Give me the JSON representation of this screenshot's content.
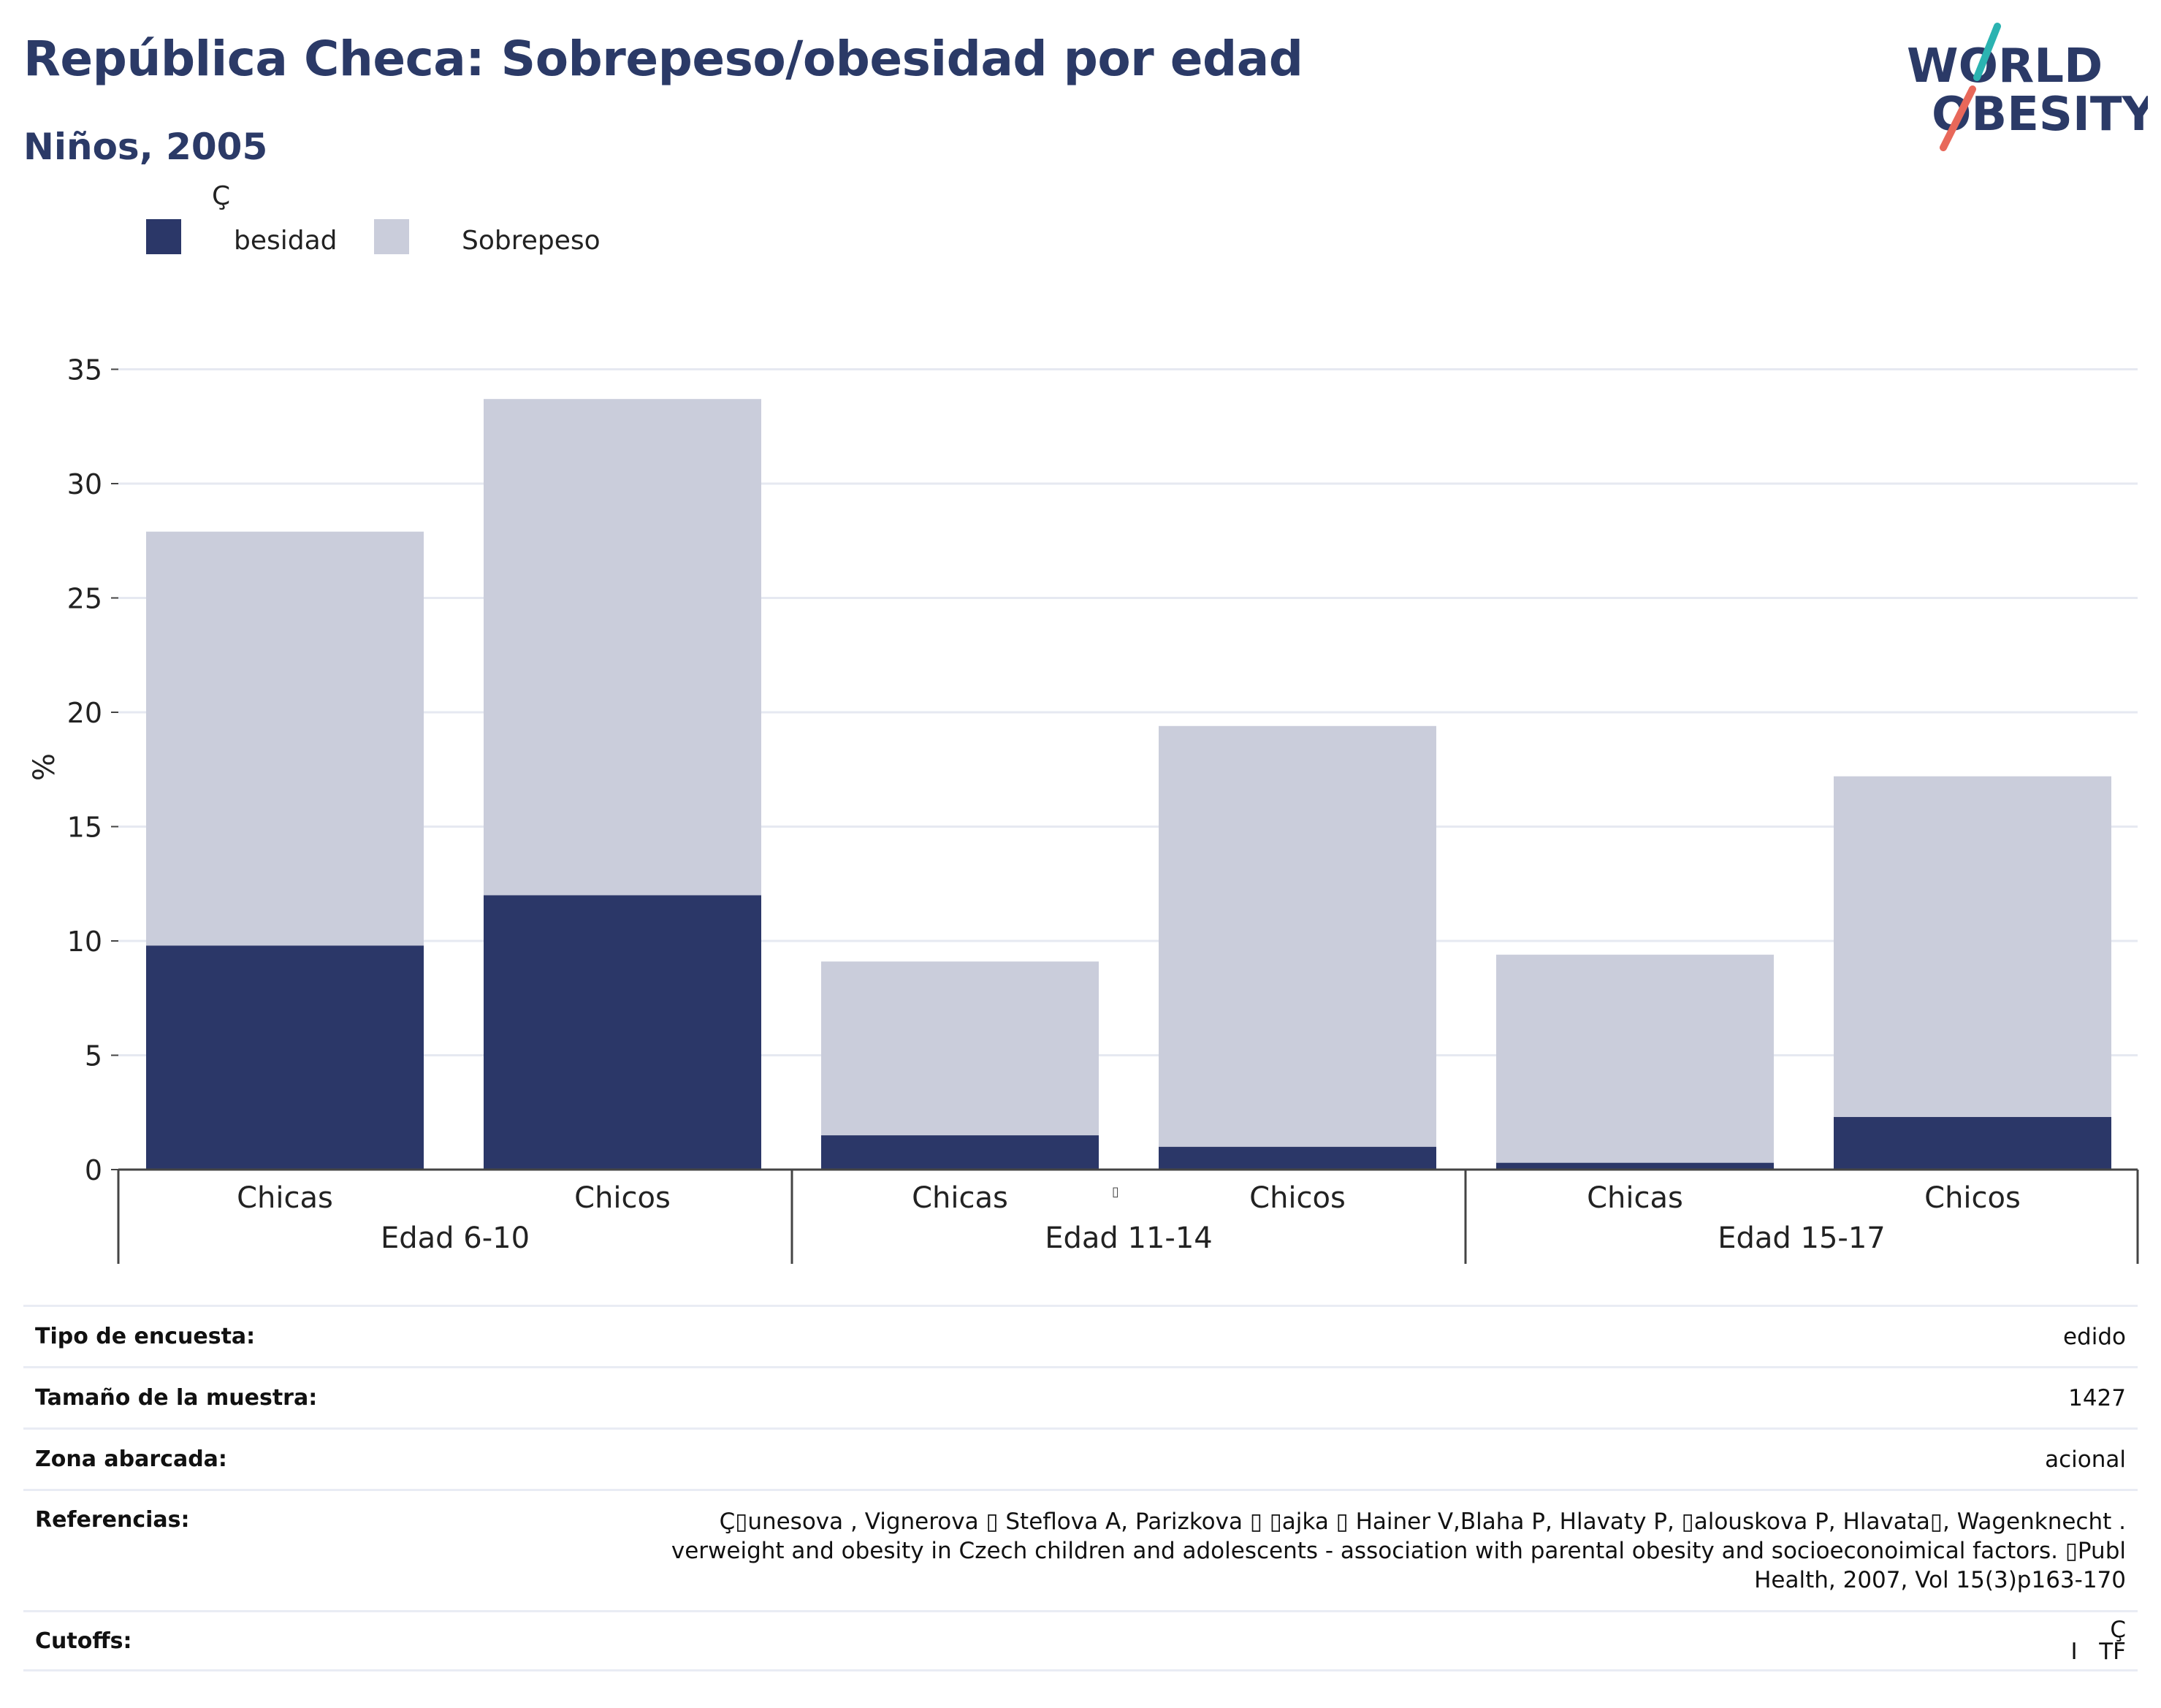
{
  "header": {
    "title": "República Checa: Sobrepeso/obesidad por edad",
    "subtitle": "Niños, 2005"
  },
  "logo": {
    "line1": "WORLD",
    "line2": "OBESITY",
    "colors": {
      "text": "#2b3a67",
      "accent_teal": "#2bb3b1",
      "accent_coral": "#e8685a"
    }
  },
  "colors": {
    "obesidad": "#2b3768",
    "sobrepeso": "#cacddb",
    "grid": "#e6e9f1",
    "axis": "#444444"
  },
  "chart_data": {
    "type": "bar",
    "stacked": true,
    "title": "República Checa: Sobrepeso/obesidad por edad",
    "subtitle": "Niños, 2005",
    "ylabel": "%",
    "ylim": [
      0,
      35
    ],
    "yticks": [
      0,
      5,
      10,
      15,
      20,
      25,
      30,
      35
    ],
    "grid": true,
    "legend_position": "top-left",
    "groups": [
      {
        "label": "Edad 6-10",
        "categories": [
          "Chicas",
          "Chicos"
        ]
      },
      {
        "label": "Edad 11-14",
        "categories": [
          "Chicas",
          "Chicos"
        ]
      },
      {
        "label": "Edad 15-17",
        "categories": [
          "Chicas",
          "Chicos"
        ]
      }
    ],
    "categories": [
      "Chicas",
      "Chicos",
      "Chicas",
      "Chicos",
      "Chicas",
      "Chicos"
    ],
    "series": [
      {
        "name": "Obesidad",
        "legend_text": "Ç\nbesidad",
        "color": "#2b3768",
        "values": [
          9.8,
          12.0,
          1.5,
          1.0,
          0.3,
          2.3
        ]
      },
      {
        "name": "Sobrepeso",
        "legend_text": "Sobrepeso",
        "color": "#cacddb",
        "values": [
          18.1,
          21.7,
          7.6,
          18.4,
          9.1,
          14.9
        ]
      }
    ],
    "annotations": [
      "▯"
    ]
  },
  "info": {
    "survey_type_label": "Tipo de encuesta:",
    "survey_type_value": "edido",
    "sample_size_label": "Tamaño de la muestra:",
    "sample_size_value": "1427",
    "area_label": "Zona abarcada:",
    "area_value": "acional",
    "references_label": "Referencias:",
    "references_value": "Ç▯unesova    , Vignerova ▯ Steflova A, Parizkova ▯ ▯ajka ▯ Hainer V,Blaha P, Hlavaty P, ▯alouskova P, Hlavata▯, Wagenknecht    . verweight and obesity in Czech children and adolescents - association with parental obesity and socioeconoimical factors. ▯Publ Health, 2007, Vol 15(3)p163-170",
    "cutoffs_label": "Cutoffs:",
    "cutoffs_value": "Ç\nI   TF"
  }
}
